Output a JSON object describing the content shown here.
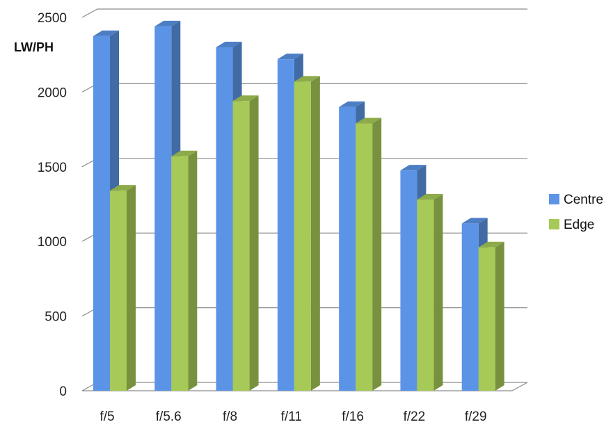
{
  "chart_data": {
    "type": "bar",
    "ylabel": "LW/PH",
    "categories": [
      "f/5",
      "f/5.6",
      "f/8",
      "f/11",
      "f/16",
      "f/22",
      "f/29"
    ],
    "series": [
      {
        "name": "Centre",
        "values": [
          2375,
          2440,
          2300,
          2220,
          1900,
          1475,
          1120
        ],
        "color": "#5b94e6"
      },
      {
        "name": "Edge",
        "values": [
          1340,
          1570,
          1940,
          2070,
          1790,
          1280,
          960
        ],
        "color": "#a6c957"
      }
    ],
    "ylim": [
      0,
      2500
    ],
    "yticks": [
      0,
      500,
      1000,
      1500,
      2000,
      2500
    ],
    "grid": true,
    "legend": "right"
  }
}
